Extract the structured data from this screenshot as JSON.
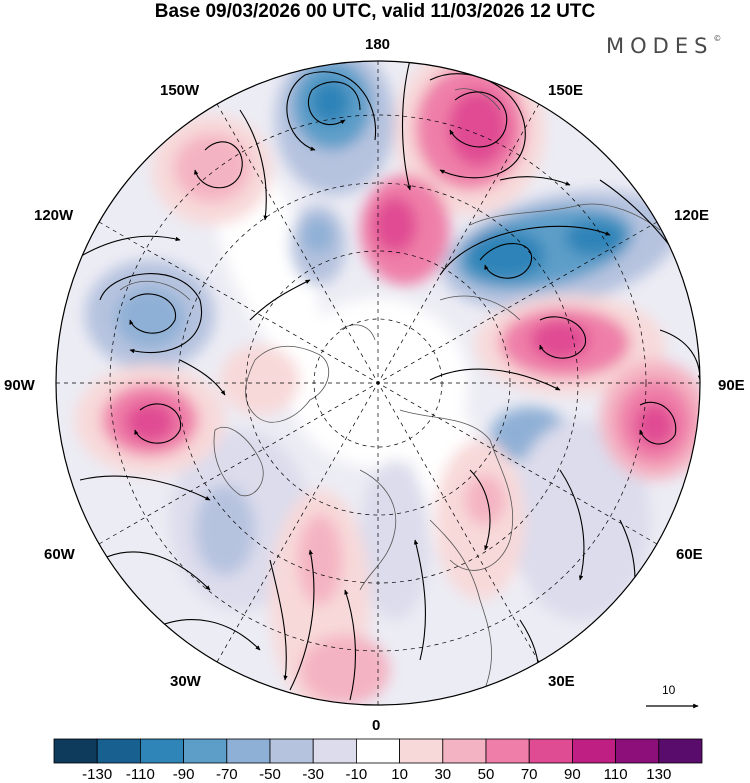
{
  "title": "Base 09/03/2026 00 UTC, valid 11/03/2026 12 UTC",
  "logo": {
    "text": "MODES",
    "mark": "©"
  },
  "longitude_labels": {
    "lon_180": "180",
    "lon_150e": "150E",
    "lon_120e": "120E",
    "lon_90e": "90E",
    "lon_60e": "60E",
    "lon_30e": "30E",
    "lon_0": "0",
    "lon_30w": "30W",
    "lon_60w": "60W",
    "lon_90w": "90W",
    "lon_120w": "120W",
    "lon_150w": "150W"
  },
  "vector_reference": {
    "value": "10"
  },
  "colorbar": {
    "ticks": [
      "-130",
      "-110",
      "-90",
      "-70",
      "-50",
      "-30",
      "-10",
      "10",
      "30",
      "50",
      "70",
      "90",
      "110",
      "130"
    ],
    "colors": [
      "#0e3a5c",
      "#17608f",
      "#2f84b8",
      "#5d9ec9",
      "#8fb0d6",
      "#b6c3df",
      "#dcdcec",
      "#ffffff",
      "#f8d9d9",
      "#f4b3c2",
      "#ef7fa9",
      "#e04c93",
      "#bf1f83",
      "#8c0f7a",
      "#5a0c6c"
    ]
  }
}
